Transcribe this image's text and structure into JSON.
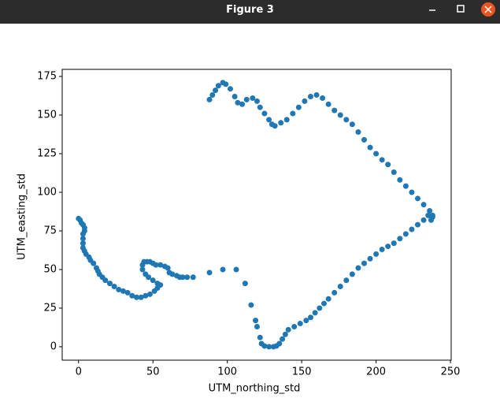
{
  "window": {
    "title": "Figure 3"
  },
  "chart_data": {
    "type": "scatter",
    "xlabel": "UTM_northing_std",
    "ylabel": "UTM_easting_std",
    "xlim": [
      -11,
      250.5
    ],
    "ylim": [
      -8.7,
      179.6
    ],
    "xticks": [
      0,
      50,
      100,
      150,
      200,
      250
    ],
    "yticks": [
      0,
      25,
      50,
      75,
      100,
      125,
      150,
      175
    ],
    "grid": false,
    "series": [
      {
        "color": "#1f77b4",
        "x": [
          0,
          1,
          2,
          3,
          4,
          4,
          3,
          3,
          3,
          3,
          4,
          5,
          7,
          8,
          10,
          12,
          13,
          14,
          16,
          18,
          21,
          24,
          27,
          30,
          33,
          36,
          39,
          42,
          45,
          48,
          51,
          53,
          55,
          53,
          50,
          47,
          45,
          43,
          43,
          44,
          46,
          48,
          50,
          52,
          55,
          58,
          60,
          61,
          63,
          66,
          68,
          70,
          73,
          77,
          88,
          97,
          106,
          112,
          116,
          119,
          120,
          122,
          123,
          125,
          128,
          131,
          133,
          135,
          137,
          139,
          141,
          145,
          149,
          153,
          156,
          159,
          162,
          165,
          168,
          172,
          176,
          180,
          184,
          188,
          192,
          196,
          200,
          204,
          208,
          212,
          216,
          220,
          224,
          228,
          232,
          235,
          237,
          238,
          238,
          236,
          232,
          228,
          224,
          220,
          216,
          212,
          208,
          204,
          200,
          196,
          192,
          188,
          184,
          180,
          176,
          172,
          168,
          164,
          160,
          156,
          152,
          148,
          144,
          140,
          136,
          132,
          130,
          128,
          125,
          122,
          120,
          117,
          113,
          110,
          107,
          105,
          102,
          99,
          97,
          94,
          92,
          90,
          88
        ],
        "y": [
          83,
          82,
          80,
          79,
          77,
          75,
          73,
          70,
          67,
          64,
          62,
          60,
          58,
          56,
          54,
          51,
          49,
          47,
          45,
          43,
          41,
          39,
          37,
          36,
          35,
          33,
          32,
          32,
          33,
          34,
          36,
          38,
          40,
          41,
          43,
          45,
          47,
          50,
          53,
          55,
          55,
          55,
          54,
          53,
          53,
          52,
          51,
          48,
          47,
          46,
          45,
          45,
          45,
          45,
          48,
          50,
          50,
          41,
          27,
          17,
          13,
          6,
          2,
          0.5,
          0,
          0,
          0.5,
          2,
          5,
          8,
          11,
          13,
          15,
          17,
          19,
          22,
          25,
          28,
          31,
          35,
          39,
          43,
          47,
          51,
          54,
          57,
          60,
          63,
          65,
          67,
          70,
          73,
          76,
          79,
          82,
          85,
          82,
          84,
          85,
          88,
          92,
          96,
          100,
          104,
          108,
          113,
          118,
          121,
          125,
          129,
          134,
          139,
          144,
          147,
          150,
          153,
          157,
          161,
          163,
          162,
          159,
          155,
          151,
          147,
          145,
          143,
          144,
          147,
          151,
          155,
          159,
          161,
          160,
          157,
          158,
          162,
          167,
          170,
          171,
          169,
          166,
          163,
          160
        ]
      }
    ]
  }
}
